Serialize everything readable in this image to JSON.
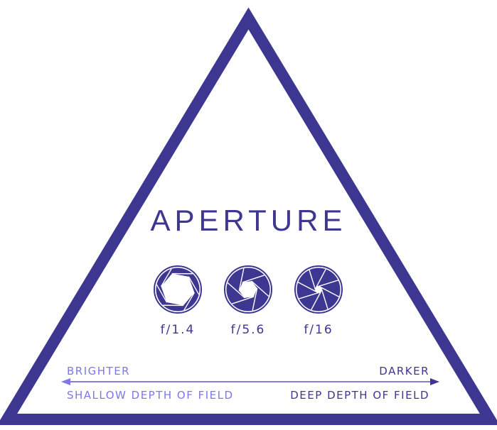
{
  "title": "APERTURE",
  "apertures": [
    {
      "label": "f/1.4",
      "blades": 6,
      "opening": 0.78
    },
    {
      "label": "f/5.6",
      "blades": 6,
      "opening": 0.42
    },
    {
      "label": "f/16",
      "blades": 8,
      "opening": 0.15
    }
  ],
  "scale": {
    "left_top": "BRIGHTER",
    "left_bottom": "SHALLOW DEPTH OF FIELD",
    "right_top": "DARKER",
    "right_bottom": "DEEP DEPTH OF FIELD"
  },
  "colors": {
    "primary": "#3e3791",
    "light": "#7e78e6",
    "background": "#ffffff"
  },
  "icons": [
    "aperture-wide-icon",
    "aperture-medium-icon",
    "aperture-narrow-icon",
    "double-arrow-icon"
  ]
}
